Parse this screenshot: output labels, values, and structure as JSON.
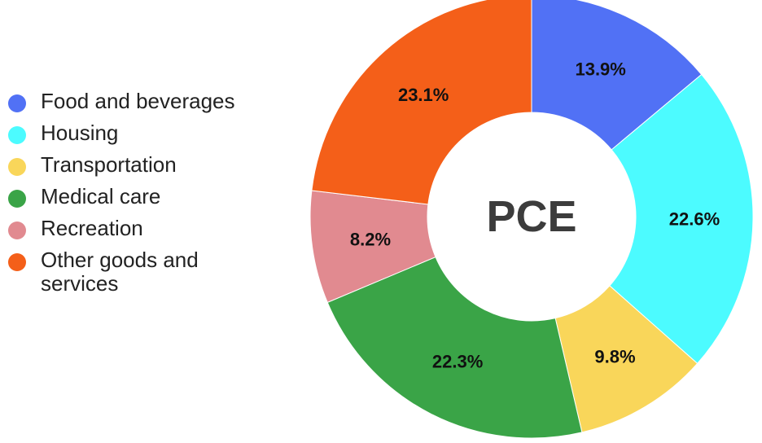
{
  "chart_data": {
    "type": "pie",
    "center_label": "PCE",
    "legend_position": "left",
    "slices": [
      {
        "name": "Food and beverages",
        "value": 13.9,
        "label": "13.9%",
        "color": "#5171f5"
      },
      {
        "name": "Housing",
        "value": 22.6,
        "label": "22.6%",
        "color": "#4cfbff"
      },
      {
        "name": "Transportation",
        "value": 9.8,
        "label": "9.8%",
        "color": "#f9d65a"
      },
      {
        "name": "Medical care",
        "value": 22.3,
        "label": "22.3%",
        "color": "#3aa447"
      },
      {
        "name": "Recreation",
        "value": 8.2,
        "label": "8.2%",
        "color": "#e18a90"
      },
      {
        "name": "Other goods and services",
        "value": 23.1,
        "label": "23.1%",
        "color": "#f45f19"
      }
    ]
  }
}
